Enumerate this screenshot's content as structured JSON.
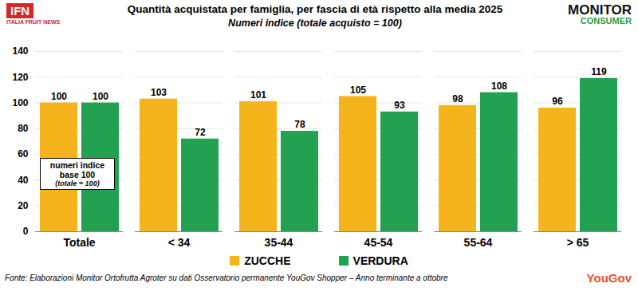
{
  "chart_data": {
    "type": "bar",
    "title": "Quantità acquistata per famiglia, per fascia di età rispetto alla media 2025",
    "subtitle": "Numeri indice (totale acquisto = 100)",
    "categories": [
      "Totale",
      "< 34",
      "35-44",
      "45-54",
      "55-64",
      "> 65"
    ],
    "series": [
      {
        "name": "ZUCCHE",
        "color": "#F5B41C",
        "values": [
          100,
          103,
          101,
          105,
          98,
          96
        ]
      },
      {
        "name": "VERDURA",
        "color": "#22A150",
        "values": [
          100,
          72,
          78,
          93,
          108,
          119
        ]
      }
    ],
    "ylim": [
      0,
      140
    ],
    "yticks": [
      0,
      20,
      40,
      60,
      80,
      100,
      120,
      140
    ],
    "grid": true,
    "data_labels": true,
    "annotations": [
      "numeri indice base 100",
      "(totale = 100)"
    ],
    "source": "Fonte: Elaborazioni Monitor Ortofrutta Agroter su dati Osservatorio permanente YouGov Shopper – Anno terminante a ottobre",
    "logos": [
      "IFN",
      "ITALIA FRUIT NEWS",
      "MONITOR",
      "CONSUMER",
      "YouGov"
    ]
  }
}
